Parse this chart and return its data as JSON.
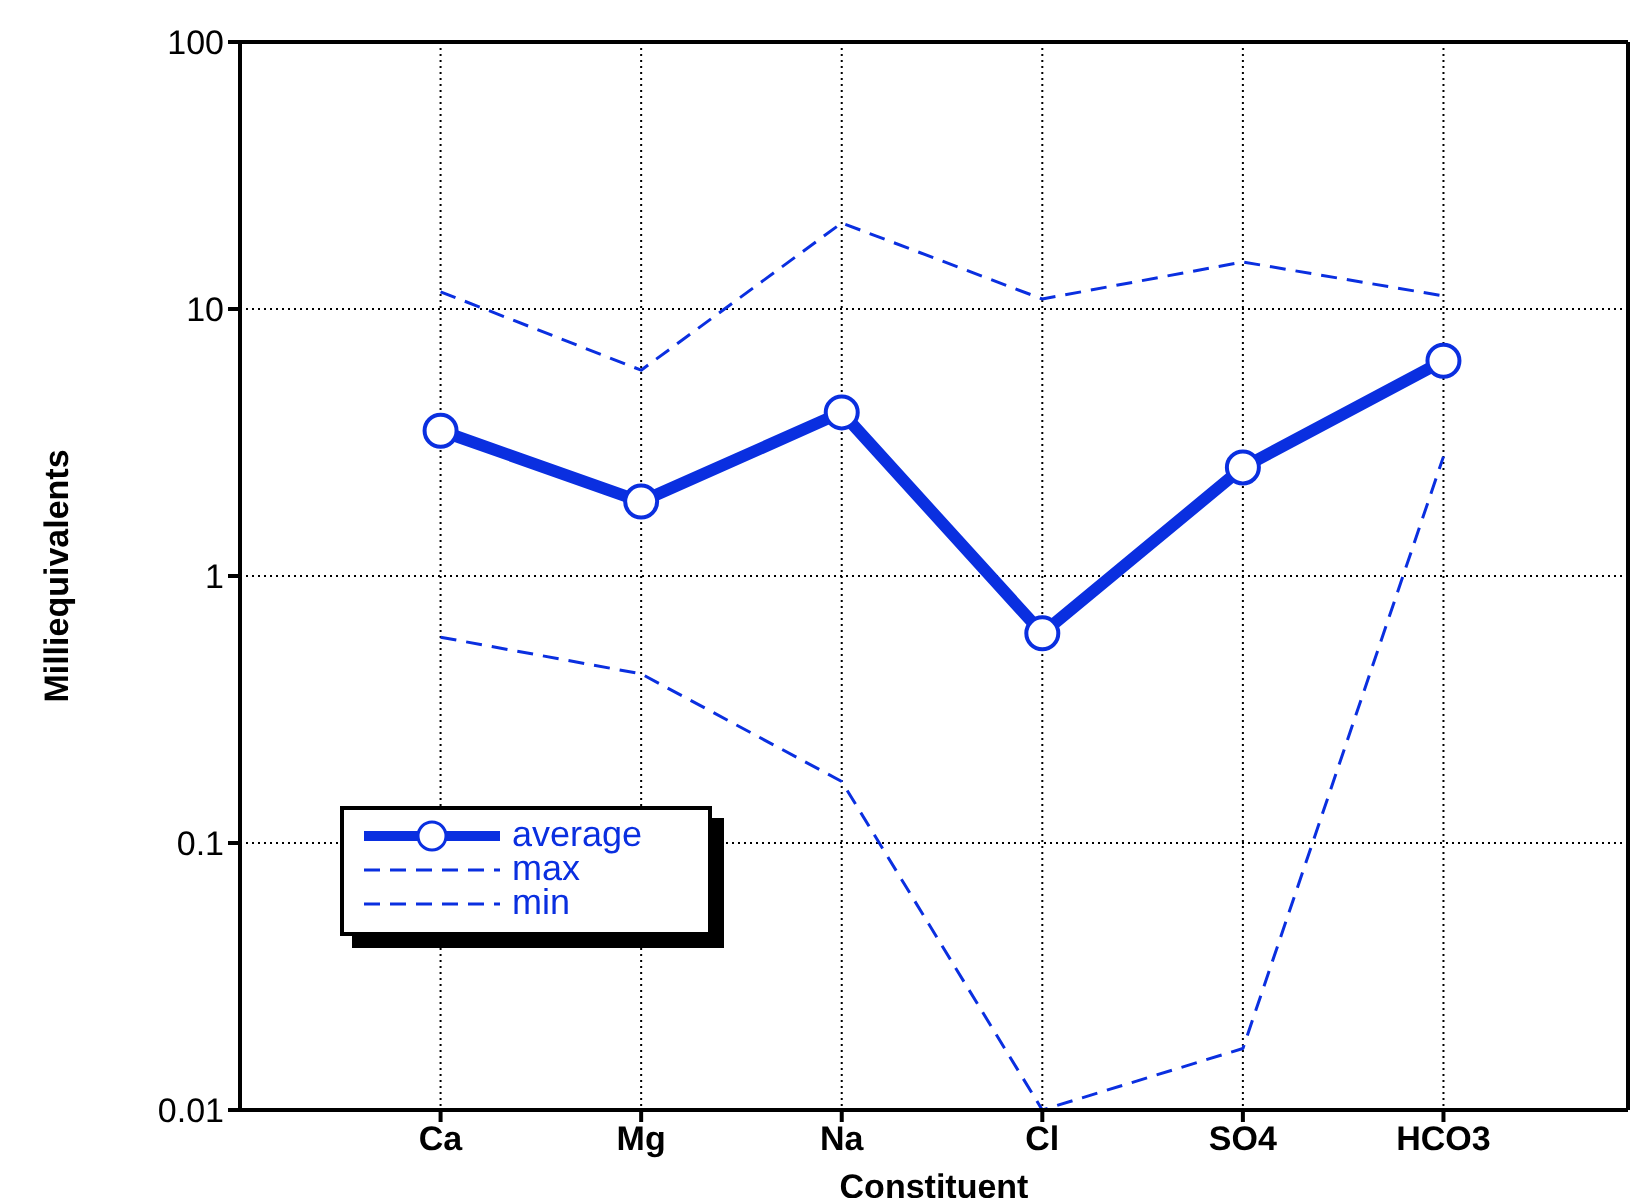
{
  "chart_data": {
    "type": "line",
    "xlabel": "Constituent",
    "ylabel": "Milliequivalents",
    "categories": [
      null,
      "Ca",
      "Mg",
      "Na",
      "Cl",
      "SO4",
      "HCO3",
      null
    ],
    "series": [
      {
        "name": "average",
        "color": "#0a2fe0",
        "marker": "circle",
        "line_style": "solid",
        "values": [
          null,
          3.5,
          1.9,
          4.1,
          0.61,
          2.55,
          6.4,
          null
        ]
      },
      {
        "name": "max",
        "color": "#0a2fe0",
        "marker": "none",
        "line_style": "dashed",
        "values": [
          null,
          11.6,
          5.9,
          21,
          10.9,
          15,
          11.2,
          null
        ]
      },
      {
        "name": "min",
        "color": "#0a2fe0",
        "marker": "none",
        "line_style": "dashed",
        "values": [
          null,
          0.59,
          0.43,
          0.17,
          0.01,
          0.017,
          2.8,
          null
        ]
      }
    ],
    "log": "y",
    "ylim": [
      0.01,
      100
    ],
    "yticks": [
      0.01,
      0.1,
      1,
      10,
      100
    ],
    "grid": true,
    "legend": "bottom left"
  }
}
